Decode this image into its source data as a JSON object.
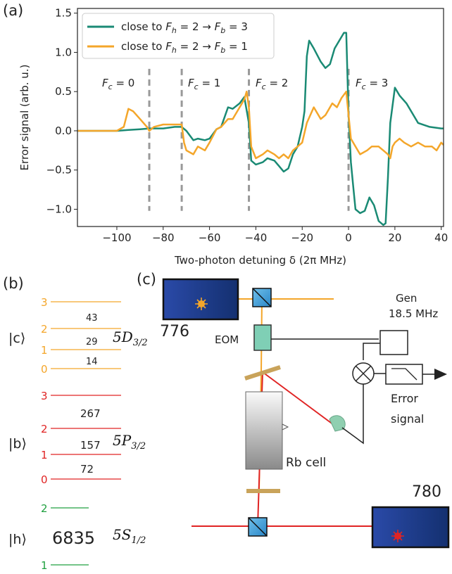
{
  "panels": {
    "a": "(a)",
    "b": "(b)",
    "c": "(c)"
  },
  "colors": {
    "teal": "#1a8a74",
    "orange": "#f4a62a",
    "red": "#e02424",
    "green": "#20a040",
    "grey": "#999999"
  },
  "chart_data": {
    "type": "line",
    "xlabel": "Two-photon detuning δ (2π MHz)",
    "ylabel": "Error signal (arb. u.)",
    "xlim": [
      -117,
      41
    ],
    "ylim": [
      -1.22,
      1.56
    ],
    "xticks": [
      -100,
      -80,
      -60,
      -40,
      -20,
      0,
      20,
      40
    ],
    "yticks": [
      -1.0,
      -0.5,
      0.0,
      0.5,
      1.0,
      1.5
    ],
    "xtick_labels": [
      "−100",
      "−80",
      "−60",
      "−40",
      "−20",
      "0",
      "20",
      "40"
    ],
    "ytick_labels": [
      "−1.0",
      "−0.5",
      "0.0",
      "0.5",
      "1.0",
      "1.5"
    ],
    "grid": false,
    "legend_position": "top-left",
    "vlines": [
      {
        "x": -86,
        "label": "F_c = 0"
      },
      {
        "x": -72,
        "label": "F_c = 1"
      },
      {
        "x": -43,
        "label": "F_c = 2"
      },
      {
        "x": 0,
        "label": "F_c = 3"
      }
    ],
    "series": [
      {
        "name": "close to F_h = 2 → F_b = 3",
        "color": "#1a8a74",
        "x": [
          -117,
          -110,
          -100,
          -95,
          -90,
          -86,
          -80,
          -75,
          -72,
          -70,
          -67,
          -65,
          -62,
          -60,
          -57,
          -55,
          -52,
          -50,
          -47,
          -45,
          -43,
          -42,
          -40,
          -37,
          -35,
          -32,
          -30,
          -28,
          -26,
          -24,
          -22,
          -20,
          -19,
          -18,
          -17,
          -15,
          -12,
          -10,
          -8,
          -6,
          -4,
          -2,
          -1,
          0,
          1,
          2,
          3,
          5,
          7,
          9,
          11,
          13,
          15,
          16,
          17,
          18,
          20,
          22,
          25,
          30,
          35,
          40,
          41
        ],
        "y": [
          0.0,
          0.0,
          0.0,
          0.01,
          0.02,
          0.03,
          0.03,
          0.05,
          0.05,
          0.0,
          -0.12,
          -0.1,
          -0.12,
          -0.1,
          0.02,
          0.05,
          0.3,
          0.28,
          0.35,
          0.43,
          0.1,
          -0.38,
          -0.43,
          -0.4,
          -0.35,
          -0.38,
          -0.45,
          -0.52,
          -0.48,
          -0.3,
          -0.2,
          0.05,
          0.25,
          0.95,
          1.15,
          1.05,
          0.88,
          0.8,
          0.85,
          1.05,
          1.15,
          1.25,
          1.25,
          0.2,
          -0.4,
          -0.7,
          -1.0,
          -1.05,
          -1.02,
          -0.85,
          -0.95,
          -1.15,
          -1.2,
          -1.18,
          -0.6,
          0.1,
          0.55,
          0.45,
          0.35,
          0.1,
          0.05,
          0.03,
          0.03
        ]
      },
      {
        "name": "close to F_h = 2 → F_b = 1",
        "color": "#f4a62a",
        "x": [
          -117,
          -110,
          -100,
          -97,
          -95,
          -93,
          -90,
          -87,
          -86,
          -84,
          -80,
          -75,
          -72,
          -71,
          -70,
          -67,
          -65,
          -62,
          -60,
          -57,
          -55,
          -52,
          -50,
          -47,
          -45,
          -44,
          -43,
          -42,
          -40,
          -37,
          -35,
          -32,
          -30,
          -28,
          -26,
          -24,
          -22,
          -20,
          -18,
          -15,
          -12,
          -10,
          -7,
          -5,
          -3,
          -1,
          0,
          1,
          3,
          5,
          8,
          10,
          13,
          15,
          17,
          18,
          19,
          20,
          22,
          24,
          27,
          30,
          33,
          36,
          38,
          40,
          41
        ],
        "y": [
          0.0,
          0.0,
          0.0,
          0.05,
          0.28,
          0.25,
          0.15,
          0.05,
          0.0,
          0.05,
          0.08,
          0.08,
          0.08,
          -0.15,
          -0.25,
          -0.3,
          -0.2,
          -0.25,
          -0.15,
          0.02,
          0.05,
          0.15,
          0.15,
          0.3,
          0.4,
          0.5,
          0.3,
          -0.2,
          -0.35,
          -0.3,
          -0.25,
          -0.3,
          -0.35,
          -0.3,
          -0.35,
          -0.25,
          -0.2,
          -0.15,
          0.1,
          0.3,
          0.15,
          0.2,
          0.35,
          0.3,
          0.42,
          0.5,
          0.2,
          -0.1,
          -0.2,
          -0.3,
          -0.25,
          -0.2,
          -0.2,
          -0.25,
          -0.3,
          -0.35,
          -0.2,
          -0.15,
          -0.1,
          -0.15,
          -0.2,
          -0.15,
          -0.2,
          -0.2,
          -0.25,
          -0.15,
          -0.18
        ]
      }
    ]
  },
  "legend": {
    "items": [
      {
        "prefix": "close to ",
        "from_sym": "F",
        "from_sub": "h",
        "from_val": " = 2 → ",
        "to_sym": "F",
        "to_sub": "b",
        "to_val": " = 3"
      },
      {
        "prefix": "close to ",
        "from_sym": "F",
        "from_sub": "h",
        "from_val": " = 2 → ",
        "to_sym": "F",
        "to_sub": "b",
        "to_val": " = 1"
      }
    ]
  },
  "fc_labels": [
    {
      "sym": "F",
      "sub": "c",
      "val": " = 0"
    },
    {
      "sym": "F",
      "sub": "c",
      "val": " = 1"
    },
    {
      "sym": "F",
      "sub": "c",
      "val": " = 2"
    },
    {
      "sym": "F",
      "sub": "c",
      "val": " = 3"
    }
  ],
  "levels": {
    "c_state": "|c⟩",
    "c_term": "5D",
    "c_sub": "3/2",
    "c_levels": [
      "3",
      "2",
      "1",
      "0"
    ],
    "c_splittings": [
      "43",
      "29",
      "14"
    ],
    "b_state": "|b⟩",
    "b_term": "5P",
    "b_sub": "3/2",
    "b_levels": [
      "3",
      "2",
      "1",
      "0"
    ],
    "b_splittings": [
      "267",
      "157",
      "72"
    ],
    "h_state": "|h⟩",
    "h_term": "5S",
    "h_sub": "1/2",
    "h_levels": [
      "2",
      "1"
    ],
    "h_splitting": "6835"
  },
  "setup": {
    "laser_776": "776",
    "laser_780": "780",
    "eom": "EOM",
    "gen_line1": "Gen",
    "gen_line2": "18.5 MHz",
    "error_line1": "Error",
    "error_line2": "signal",
    "rb_cell": "Rb cell"
  }
}
